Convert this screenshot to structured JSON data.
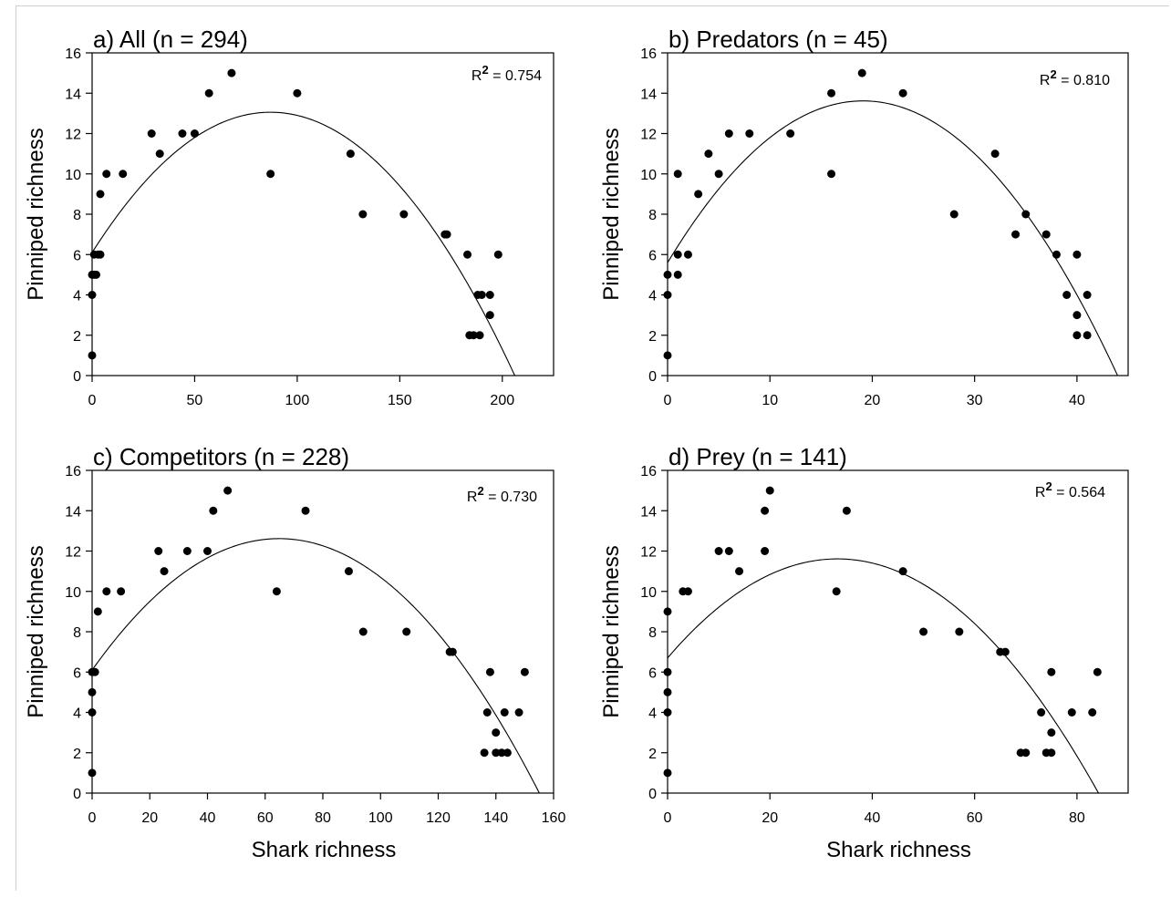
{
  "chart_data": [
    {
      "type": "scatter",
      "panel": "a",
      "title": "a) All (n = 294)",
      "xlabel": "",
      "ylabel": "Pinniped richness",
      "xlim": [
        0,
        225
      ],
      "ylim": [
        0,
        16
      ],
      "xticks": [
        0,
        50,
        100,
        150,
        200
      ],
      "yticks": [
        0,
        2,
        4,
        6,
        8,
        10,
        12,
        14,
        16
      ],
      "r2": {
        "prefix": "R",
        "sup": "2",
        "value": " = 0.754"
      },
      "fit": {
        "type": "quadratic",
        "coef": [
          6.1,
          0.16,
          -0.00092
        ]
      },
      "points": [
        [
          0,
          1
        ],
        [
          0,
          4
        ],
        [
          0,
          5
        ],
        [
          1,
          5
        ],
        [
          1,
          6
        ],
        [
          2,
          5
        ],
        [
          3,
          6
        ],
        [
          4,
          6
        ],
        [
          4,
          9
        ],
        [
          7,
          10
        ],
        [
          15,
          10
        ],
        [
          29,
          12
        ],
        [
          33,
          11
        ],
        [
          44,
          12
        ],
        [
          50,
          12
        ],
        [
          57,
          14
        ],
        [
          68,
          15
        ],
        [
          87,
          10
        ],
        [
          100,
          14
        ],
        [
          126,
          11
        ],
        [
          132,
          8
        ],
        [
          152,
          8
        ],
        [
          172,
          7
        ],
        [
          173,
          7
        ],
        [
          183,
          6
        ],
        [
          184,
          2
        ],
        [
          186,
          2
        ],
        [
          189,
          2
        ],
        [
          188,
          4
        ],
        [
          190,
          4
        ],
        [
          194,
          4
        ],
        [
          194,
          3
        ],
        [
          198,
          6
        ]
      ]
    },
    {
      "type": "scatter",
      "panel": "b",
      "title": "b) Predators (n = 45)",
      "xlabel": "",
      "ylabel": "Pinniped richness",
      "xlim": [
        0,
        45
      ],
      "ylim": [
        0,
        16
      ],
      "xticks": [
        0,
        10,
        20,
        30,
        40
      ],
      "yticks": [
        0,
        2,
        4,
        6,
        8,
        10,
        12,
        14,
        16
      ],
      "r2": {
        "prefix": "R",
        "sup": "2",
        "value": " = 0.810"
      },
      "fit": {
        "type": "quadratic",
        "coef": [
          5.6,
          0.84,
          -0.022
        ]
      },
      "points": [
        [
          0,
          1
        ],
        [
          0,
          4
        ],
        [
          0,
          5
        ],
        [
          1,
          5
        ],
        [
          1,
          6
        ],
        [
          1,
          10
        ],
        [
          2,
          6
        ],
        [
          3,
          9
        ],
        [
          4,
          11
        ],
        [
          5,
          10
        ],
        [
          6,
          12
        ],
        [
          8,
          12
        ],
        [
          12,
          12
        ],
        [
          16,
          10
        ],
        [
          16,
          14
        ],
        [
          19,
          15
        ],
        [
          23,
          14
        ],
        [
          28,
          8
        ],
        [
          32,
          11
        ],
        [
          34,
          7
        ],
        [
          35,
          8
        ],
        [
          37,
          7
        ],
        [
          38,
          6
        ],
        [
          39,
          4
        ],
        [
          40,
          6
        ],
        [
          40,
          3
        ],
        [
          40,
          2
        ],
        [
          41,
          4
        ],
        [
          41,
          2
        ]
      ]
    },
    {
      "type": "scatter",
      "panel": "c",
      "title": "c) Competitors (n = 228)",
      "xlabel": "Shark richness",
      "ylabel": "Pinniped richness",
      "xlim": [
        0,
        160
      ],
      "ylim": [
        0,
        16
      ],
      "xticks": [
        0,
        20,
        40,
        60,
        80,
        100,
        120,
        140,
        160
      ],
      "yticks": [
        0,
        2,
        4,
        6,
        8,
        10,
        12,
        14,
        16
      ],
      "r2": {
        "prefix": "R",
        "sup": "2",
        "value": " = 0.730"
      },
      "fit": {
        "type": "quadratic",
        "coef": [
          6.1,
          0.201,
          -0.00155
        ]
      },
      "points": [
        [
          0,
          1
        ],
        [
          0,
          4
        ],
        [
          0,
          5
        ],
        [
          0,
          6
        ],
        [
          1,
          6
        ],
        [
          2,
          9
        ],
        [
          5,
          10
        ],
        [
          10,
          10
        ],
        [
          23,
          12
        ],
        [
          25,
          11
        ],
        [
          33,
          12
        ],
        [
          40,
          12
        ],
        [
          42,
          14
        ],
        [
          47,
          15
        ],
        [
          64,
          10
        ],
        [
          74,
          14
        ],
        [
          89,
          11
        ],
        [
          94,
          8
        ],
        [
          109,
          8
        ],
        [
          124,
          7
        ],
        [
          125,
          7
        ],
        [
          136,
          2
        ],
        [
          137,
          4
        ],
        [
          138,
          6
        ],
        [
          140,
          3
        ],
        [
          140,
          2
        ],
        [
          142,
          2
        ],
        [
          143,
          4
        ],
        [
          144,
          2
        ],
        [
          148,
          4
        ],
        [
          150,
          6
        ]
      ]
    },
    {
      "type": "scatter",
      "panel": "d",
      "title": "d) Prey (n = 141)",
      "xlabel": "Shark richness",
      "ylabel": "Pinniped richness",
      "xlim": [
        0,
        90
      ],
      "ylim": [
        0,
        16
      ],
      "xticks": [
        0,
        20,
        40,
        60,
        80
      ],
      "yticks": [
        0,
        2,
        4,
        6,
        8,
        10,
        12,
        14,
        16
      ],
      "r2": {
        "prefix": "R",
        "sup": "2",
        "value": " = 0.564"
      },
      "fit": {
        "type": "quadratic",
        "coef": [
          6.7,
          0.296,
          -0.00446
        ]
      },
      "points": [
        [
          0,
          1
        ],
        [
          0,
          4
        ],
        [
          0,
          5
        ],
        [
          0,
          6
        ],
        [
          0,
          9
        ],
        [
          3,
          10
        ],
        [
          4,
          10
        ],
        [
          10,
          12
        ],
        [
          12,
          12
        ],
        [
          14,
          11
        ],
        [
          19,
          12
        ],
        [
          19,
          14
        ],
        [
          20,
          15
        ],
        [
          33,
          10
        ],
        [
          35,
          14
        ],
        [
          46,
          11
        ],
        [
          50,
          8
        ],
        [
          57,
          8
        ],
        [
          65,
          7
        ],
        [
          66,
          7
        ],
        [
          69,
          2
        ],
        [
          70,
          2
        ],
        [
          73,
          4
        ],
        [
          74,
          2
        ],
        [
          75,
          6
        ],
        [
          75,
          3
        ],
        [
          75,
          2
        ],
        [
          79,
          4
        ],
        [
          83,
          4
        ],
        [
          84,
          6
        ]
      ]
    }
  ]
}
